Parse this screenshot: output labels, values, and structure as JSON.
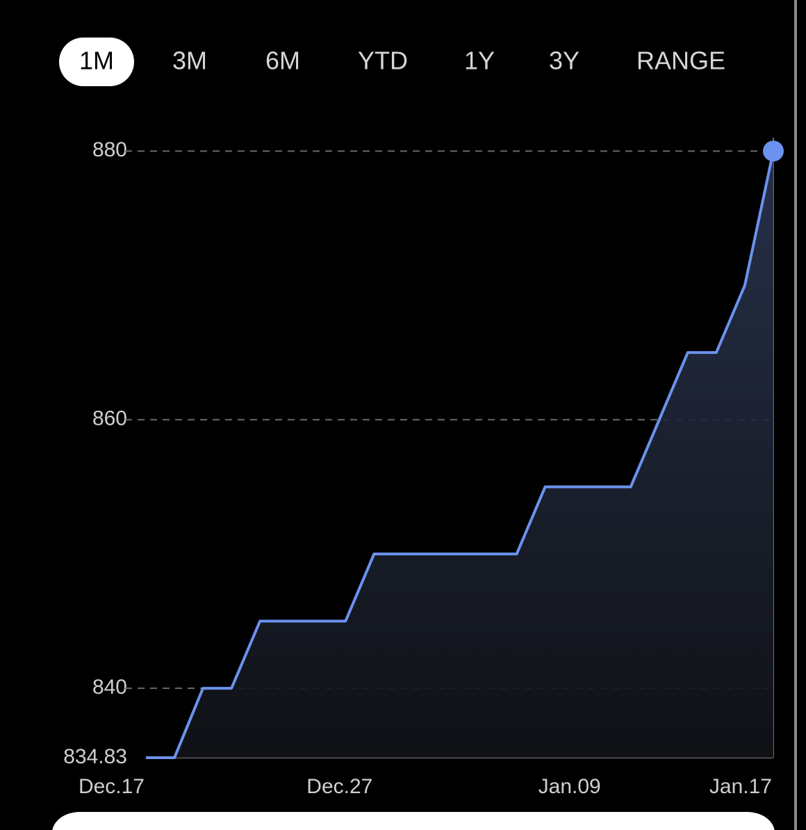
{
  "tabs": [
    {
      "label": "1M",
      "selected": true
    },
    {
      "label": "3M",
      "selected": false
    },
    {
      "label": "6M",
      "selected": false
    },
    {
      "label": "YTD",
      "selected": false
    },
    {
      "label": "1Y",
      "selected": false
    },
    {
      "label": "3Y",
      "selected": false
    },
    {
      "label": "RANGE",
      "selected": false
    }
  ],
  "chart_data": {
    "type": "line",
    "color": "#6b92ee",
    "categories": [
      "Dec.17",
      null,
      null,
      null,
      null,
      null,
      null,
      null,
      "Dec.27",
      null,
      null,
      null,
      null,
      null,
      null,
      null,
      "Jan.09",
      null,
      null,
      null,
      null,
      null,
      "Jan.17"
    ],
    "values": [
      834.83,
      834.83,
      840,
      840,
      845,
      845,
      845,
      845,
      850,
      850,
      850,
      850,
      850,
      850,
      855,
      855,
      855,
      855,
      860,
      865,
      865,
      870,
      880
    ],
    "ylim": [
      834.83,
      881
    ],
    "yticks": [
      834.83,
      840,
      860,
      880
    ],
    "grid": true,
    "area": true
  }
}
